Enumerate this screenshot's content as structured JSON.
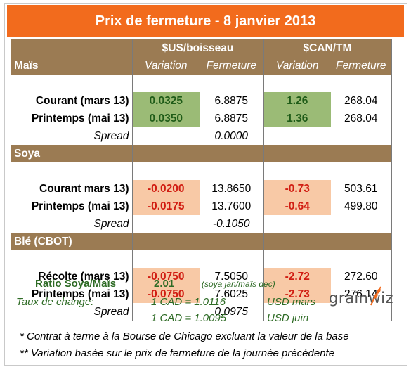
{
  "title": "Prix de fermeture - 8 janvier 2013",
  "header": {
    "usd_group": "$US/boisseau",
    "cad_group": "$CAN/TM",
    "col_variation": "Variation",
    "col_fermeture": "Fermeture"
  },
  "sections": [
    {
      "name": "Maïs",
      "rows": [
        {
          "label": "Courant (mars 13)",
          "usd_var": "0.0325",
          "usd_close": "6.8875",
          "cad_var": "1.26",
          "cad_close": "268.04"
        },
        {
          "label": "Printemps (mai 13)",
          "usd_var": "0.0350",
          "usd_close": "6.8875",
          "cad_var": "1.36",
          "cad_close": "268.04"
        }
      ],
      "spread_label": "Spread",
      "spread_value": "0.0000"
    },
    {
      "name": "Soya",
      "rows": [
        {
          "label": "Courant mars 13)",
          "usd_var": "-0.0200",
          "usd_close": "13.8650",
          "cad_var": "-0.73",
          "cad_close": "503.61"
        },
        {
          "label": "Printemps (mai 13)",
          "usd_var": "-0.0175",
          "usd_close": "13.7600",
          "cad_var": "-0.64",
          "cad_close": "499.80"
        }
      ],
      "spread_label": "Spread",
      "spread_value": "-0.1050"
    },
    {
      "name": "Blé (CBOT)",
      "rows": [
        {
          "label": "Récolte (mars 13)",
          "usd_var": "-0.0750",
          "usd_close": "7.5050",
          "cad_var": "-2.72",
          "cad_close": "272.60"
        },
        {
          "label": "Printemps (mai 13)",
          "usd_var": "-0.0750",
          "usd_close": "7.6025",
          "cad_var": "-2.73",
          "cad_close": "276.14"
        }
      ],
      "spread_label": "Spread",
      "spread_value": "0.0975"
    }
  ],
  "ratio": {
    "label": "Ratio Soya/Maïs",
    "value": "2.01",
    "note": "(soya jan/maïs dec)"
  },
  "exchange": {
    "label": "Taux de change:",
    "rates": [
      {
        "text": "1 CAD =  1.0116",
        "unit": "USD mars"
      },
      {
        "text": "1 CAD =  1.0095",
        "unit": "USD juin"
      }
    ]
  },
  "logo": {
    "text": "grainwiz"
  },
  "footnotes": [
    "* Contrat à terme à la Bourse de Chicago excluant la valeur de la base",
    "** Variation basée sur le prix de fermeture de la journée précédente"
  ],
  "colors": {
    "title_bg": "#f26b1d",
    "band_bg": "#9b7b53",
    "positive_bg": "#9bbb76",
    "negative_bg": "#f8c9a6",
    "negative_text": "#d11d12",
    "green_text": "#2e6b25"
  }
}
